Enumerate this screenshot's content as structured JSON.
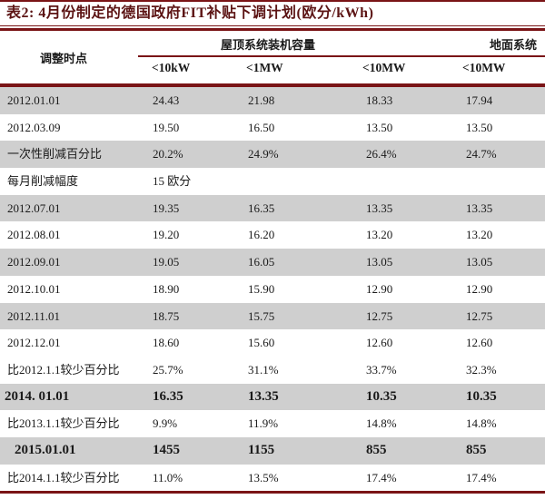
{
  "title": "表2: 4月份制定的德国政府FIT补贴下调计划(欧分/kWh)",
  "header": {
    "time_col": "调整时点",
    "rooftop_group": "屋顶系统装机容量",
    "ground_group": "地面系统",
    "subcols": [
      "<10kW",
      "<1MW",
      "<10MW",
      "<10MW"
    ]
  },
  "rows": [
    {
      "label": "2012.01.01",
      "values": [
        "24.43",
        "21.98",
        "18.33",
        "17.94"
      ],
      "shade": true,
      "bold": false,
      "indent": false
    },
    {
      "label": "2012.03.09",
      "values": [
        "19.50",
        "16.50",
        "13.50",
        "13.50"
      ],
      "shade": false,
      "bold": false,
      "indent": false
    },
    {
      "label": "一次性削减百分比",
      "values": [
        "20.2%",
        "24.9%",
        "26.4%",
        "24.7%"
      ],
      "shade": true,
      "bold": false,
      "indent": false
    },
    {
      "label": "每月削减幅度",
      "values": [
        "15 欧分",
        "",
        "",
        ""
      ],
      "shade": false,
      "bold": false,
      "indent": false
    },
    {
      "label": "2012.07.01",
      "values": [
        "19.35",
        "16.35",
        "13.35",
        "13.35"
      ],
      "shade": true,
      "bold": false,
      "indent": false
    },
    {
      "label": "2012.08.01",
      "values": [
        "19.20",
        "16.20",
        "13.20",
        "13.20"
      ],
      "shade": false,
      "bold": false,
      "indent": false
    },
    {
      "label": "2012.09.01",
      "values": [
        "19.05",
        "16.05",
        "13.05",
        "13.05"
      ],
      "shade": true,
      "bold": false,
      "indent": false
    },
    {
      "label": "2012.10.01",
      "values": [
        "18.90",
        "15.90",
        "12.90",
        "12.90"
      ],
      "shade": false,
      "bold": false,
      "indent": false
    },
    {
      "label": "2012.11.01",
      "values": [
        "18.75",
        "15.75",
        "12.75",
        "12.75"
      ],
      "shade": true,
      "bold": false,
      "indent": false
    },
    {
      "label": "2012.12.01",
      "values": [
        "18.60",
        "15.60",
        "12.60",
        "12.60"
      ],
      "shade": false,
      "bold": false,
      "indent": false
    },
    {
      "label": "比2012.1.1较少百分比",
      "values": [
        "25.7%",
        "31.1%",
        "33.7%",
        "32.3%"
      ],
      "shade": false,
      "bold": false,
      "indent": false
    },
    {
      "label": "2014. 01.01",
      "values": [
        "16.35",
        "13.35",
        "10.35",
        "10.35"
      ],
      "shade": true,
      "bold": true,
      "indent": false
    },
    {
      "label": "比2013.1.1较少百分比",
      "values": [
        "9.9%",
        "11.9%",
        "14.8%",
        "14.8%"
      ],
      "shade": false,
      "bold": false,
      "indent": false
    },
    {
      "label": "2015.01.01",
      "values": [
        "1455",
        "1155",
        "855",
        "855"
      ],
      "shade": true,
      "bold": true,
      "indent": true
    },
    {
      "label": "比2014.1.1较少百分比",
      "values": [
        "11.0%",
        "13.5%",
        "17.4%",
        "17.4%"
      ],
      "shade": false,
      "bold": false,
      "indent": false
    }
  ],
  "colors": {
    "maroon_line": "#7a1416",
    "title_text": "#5c1414",
    "row_shade": "#cfcfcf",
    "body_text": "#1a1a1a",
    "background": "#ffffff"
  }
}
